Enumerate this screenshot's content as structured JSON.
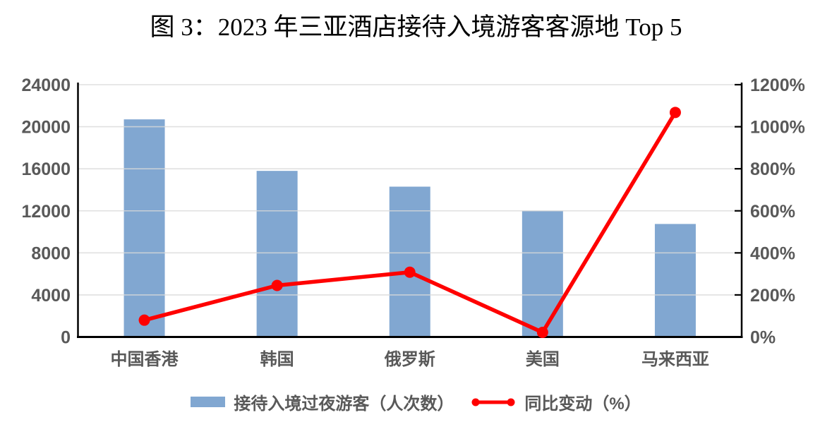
{
  "title": "图 3：2023 年三亚酒店接待入境游客客源地 Top 5",
  "colors": {
    "bar": "#81A7D1",
    "line": "#FF0000",
    "label": "#595959",
    "gridline": "#D9D9D9",
    "axis": "#000000",
    "background": "#FFFFFF"
  },
  "legend": {
    "bar_label": "接待入境过夜游客（人次数）",
    "line_label": "同比变动（%）"
  },
  "chart_data": {
    "type": "combo-bar-line",
    "title": "图 3：2023 年三亚酒店接待入境游客客源地 Top 5",
    "categories": [
      "中国香港",
      "韩国",
      "俄罗斯",
      "美国",
      "马来西亚"
    ],
    "series": [
      {
        "name": "接待入境过夜游客（人次数）",
        "type": "bar",
        "axis": "left",
        "values": [
          20700,
          15800,
          14300,
          12000,
          10750
        ]
      },
      {
        "name": "同比变动（%）",
        "type": "line",
        "axis": "right",
        "values": [
          80,
          245,
          308,
          22,
          1068
        ]
      }
    ],
    "left_axis": {
      "min": 0,
      "max": 24000,
      "step": 4000,
      "ticks": [
        "0",
        "4000",
        "8000",
        "12000",
        "16000",
        "20000",
        "24000"
      ]
    },
    "right_axis": {
      "min": 0,
      "max": 1200,
      "step": 200,
      "ticks": [
        "0%",
        "200%",
        "400%",
        "600%",
        "800%",
        "1000%",
        "1200%"
      ]
    },
    "grid": true,
    "legend_position": "bottom"
  }
}
